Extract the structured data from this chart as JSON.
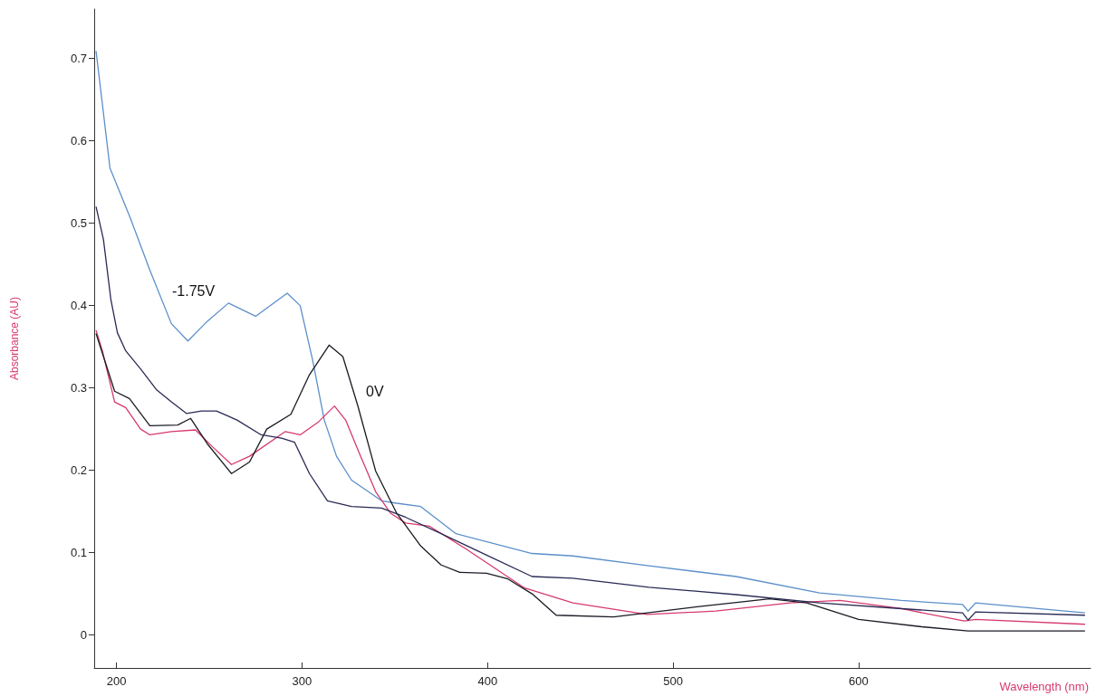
{
  "chart_data": {
    "type": "line",
    "xlabel": "Wavelength (nm)",
    "ylabel": "Absorbance (AU)",
    "xlim": [
      188,
      725
    ],
    "xticks": [
      200,
      300,
      400,
      500,
      600
    ],
    "ylim": [
      -0.04,
      0.76
    ],
    "yticks": [
      0,
      0.1,
      0.2,
      0.3,
      0.4,
      0.5,
      0.6,
      0.7
    ],
    "grid": false,
    "marker": "none",
    "line_style": "solid",
    "annotations": [
      "-1.75V",
      "0V"
    ],
    "series": [
      {
        "color": "#5b8fc9",
        "x": [
          189,
          196.5,
          207,
          218,
          229.6,
          238.5,
          249,
          260.4,
          275,
          292,
          299,
          305.7,
          312,
          318.6,
          326.7,
          342.9,
          351,
          364,
          383,
          424,
          446,
          487,
          534,
          579,
          623,
          656,
          659,
          663,
          722
        ],
        "values": [
          0.709,
          0.567,
          0.509,
          0.443,
          0.378,
          0.357,
          0.381,
          0.403,
          0.387,
          0.415,
          0.4,
          0.334,
          0.261,
          0.217,
          0.188,
          0.163,
          0.16,
          0.156,
          0.123,
          0.099,
          0.096,
          0.084,
          0.071,
          0.051,
          0.042,
          0.037,
          0.029,
          0.039,
          0.027
        ]
      },
      {
        "color": "#d63a6e",
        "x": [
          189,
          192.4,
          199,
          205,
          213,
          218,
          229.6,
          242.6,
          252,
          262,
          271.7,
          291,
          299,
          309,
          317.5,
          323.5,
          331.6,
          339.7,
          347.7,
          355.8,
          368.8,
          388,
          420,
          446,
          486,
          523,
          563,
          590,
          623,
          657,
          663,
          722
        ],
        "values": [
          0.37,
          0.345,
          0.283,
          0.276,
          0.25,
          0.243,
          0.247,
          0.249,
          0.228,
          0.207,
          0.217,
          0.247,
          0.243,
          0.259,
          0.278,
          0.261,
          0.217,
          0.174,
          0.148,
          0.136,
          0.132,
          0.105,
          0.057,
          0.039,
          0.025,
          0.029,
          0.039,
          0.042,
          0.032,
          0.017,
          0.019,
          0.013
        ]
      },
      {
        "color": "#1a1a24",
        "x": [
          189,
          199,
          207,
          218,
          233,
          240,
          249,
          262,
          271.7,
          281,
          294,
          304,
          314.6,
          322,
          330,
          339.7,
          351,
          364,
          375,
          385,
          399.5,
          411,
          424,
          437,
          468,
          512,
          552,
          572,
          600,
          634,
          659,
          722
        ],
        "values": [
          0.366,
          0.296,
          0.287,
          0.254,
          0.255,
          0.263,
          0.232,
          0.196,
          0.21,
          0.25,
          0.268,
          0.316,
          0.352,
          0.338,
          0.279,
          0.199,
          0.148,
          0.108,
          0.085,
          0.076,
          0.075,
          0.068,
          0.05,
          0.024,
          0.022,
          0.034,
          0.044,
          0.039,
          0.019,
          0.01,
          0.005,
          0.005
        ]
      },
      {
        "color": "#2a2a55",
        "x": [
          189,
          193,
          197,
          200.5,
          205,
          213,
          221.5,
          229.6,
          237.7,
          245.8,
          253.9,
          265,
          278,
          289,
          296,
          304,
          313.7,
          326.7,
          342.9,
          355.8,
          375,
          399.5,
          424,
          446,
          487,
          534,
          579,
          623,
          656,
          659,
          663,
          722
        ],
        "values": [
          0.52,
          0.48,
          0.407,
          0.367,
          0.345,
          0.323,
          0.298,
          0.283,
          0.269,
          0.272,
          0.272,
          0.261,
          0.243,
          0.239,
          0.234,
          0.196,
          0.163,
          0.156,
          0.154,
          0.143,
          0.123,
          0.097,
          0.071,
          0.069,
          0.058,
          0.049,
          0.039,
          0.032,
          0.027,
          0.018,
          0.028,
          0.024
        ]
      }
    ]
  }
}
